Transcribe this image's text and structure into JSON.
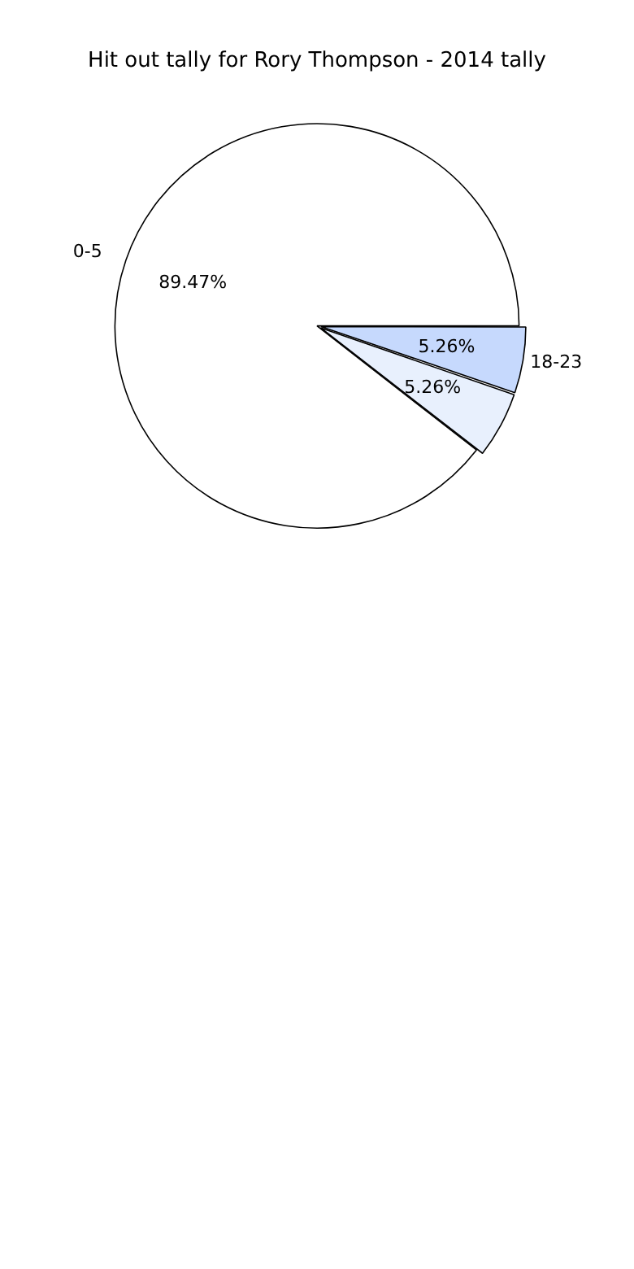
{
  "chart_data": {
    "type": "pie",
    "title": "Hit out tally for Rory Thompson - 2014 tally",
    "categories": [
      "0-5",
      null,
      "18-23"
    ],
    "values": [
      89.47,
      5.26,
      5.26
    ],
    "colors": [
      "#ffffff",
      "#e8f0fd",
      "#c6d9fd"
    ],
    "value_labels": [
      "89.47%",
      "5.26%",
      "5.26%"
    ],
    "legend": false
  }
}
